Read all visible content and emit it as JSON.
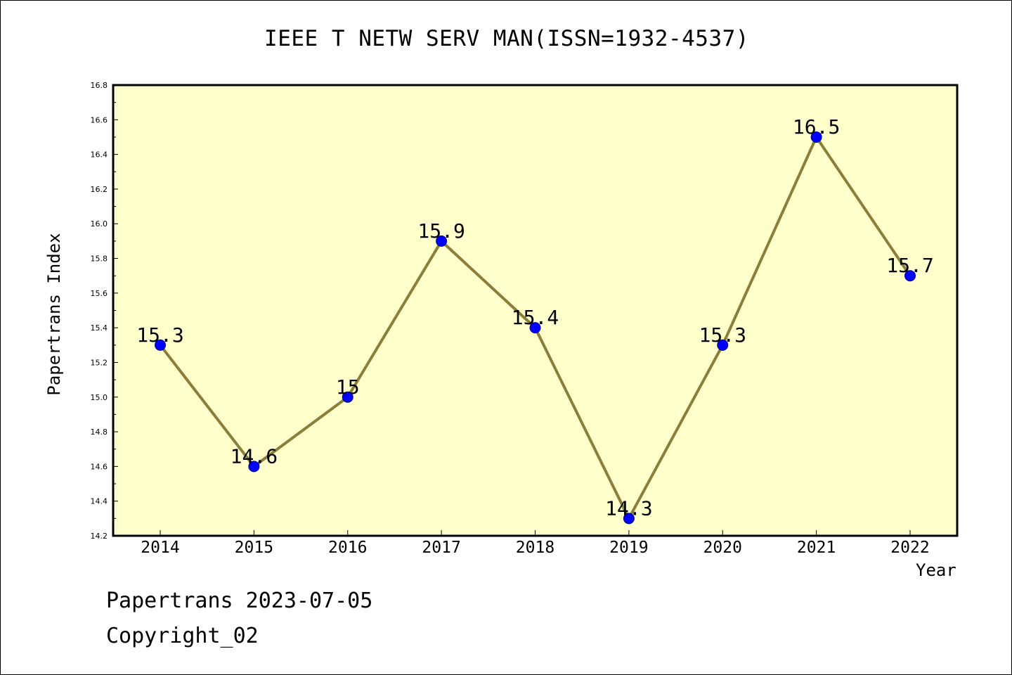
{
  "chart_data": {
    "type": "line",
    "title": "IEEE T NETW SERV MAN(ISSN=1932-4537)",
    "xlabel": "Year",
    "ylabel": "Papertrans Index",
    "x": [
      "2014",
      "2015",
      "2016",
      "2017",
      "2018",
      "2019",
      "2020",
      "2021",
      "2022"
    ],
    "series": [
      {
        "values": [
          15.3,
          14.6,
          15.0,
          15.9,
          15.4,
          14.3,
          15.3,
          16.5,
          15.7
        ],
        "labels": [
          "15.3",
          "14.6",
          "15",
          "15.9",
          "15.4",
          "14.3",
          "15.3",
          "16.5",
          "15.7"
        ]
      }
    ],
    "ylim": [
      14.2,
      16.8
    ],
    "yticks": [
      "14.2",
      "14.4",
      "14.6",
      "14.8",
      "15.0",
      "15.2",
      "15.4",
      "15.6",
      "15.8",
      "16.0",
      "16.2",
      "16.4",
      "16.6",
      "16.8"
    ],
    "grid": false,
    "colors": {
      "line": "#8b7d3a",
      "marker": "#0000ff",
      "plot_bg": "#ffffcc"
    }
  },
  "footer": {
    "line1": "Papertrans 2023-07-05",
    "line2": "Copyright_02"
  }
}
